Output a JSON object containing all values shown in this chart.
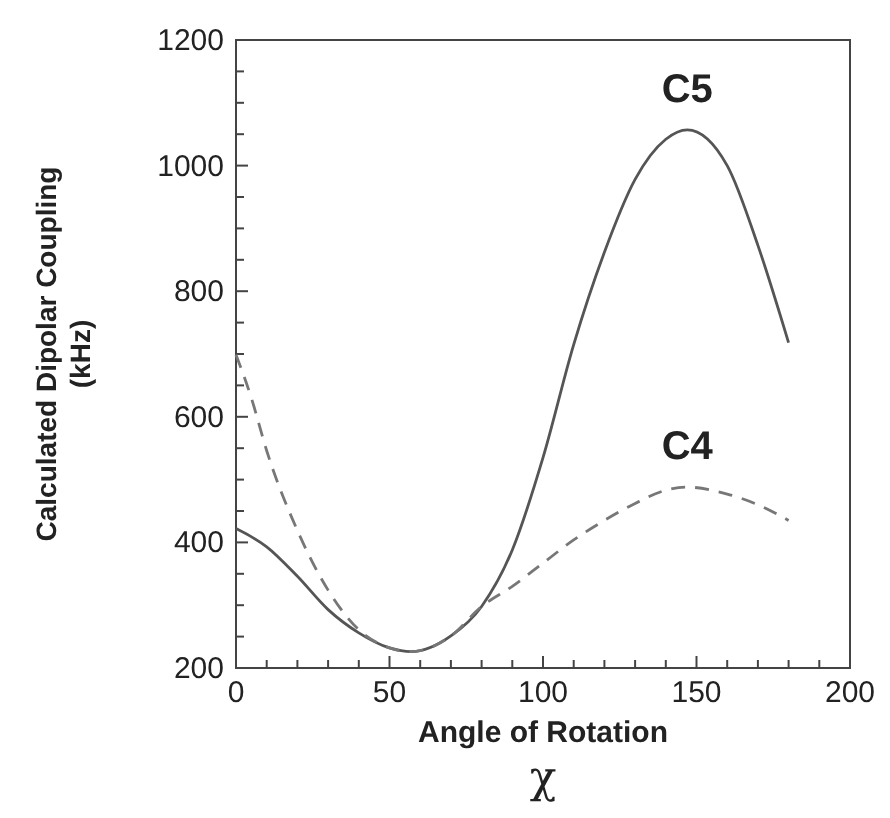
{
  "chart_data": {
    "type": "line",
    "xlabel": "Angle of Rotation",
    "ylabel": "Calculated Dipolar Coupling\n(kHz)",
    "xlim": [
      0,
      200
    ],
    "ylim": [
      200,
      1200
    ],
    "xticks": [
      0,
      {
        "value": 10,
        "label": null
      },
      {
        "value": 20,
        "label": null
      },
      {
        "value": 30,
        "label": null
      },
      {
        "value": 40,
        "label": null
      },
      50,
      {
        "value": 60,
        "label": null
      },
      {
        "value": 70,
        "label": null
      },
      {
        "value": 80,
        "label": null
      },
      {
        "value": 90,
        "label": null
      },
      100,
      {
        "value": 110,
        "label": null
      },
      {
        "value": 120,
        "label": null
      },
      {
        "value": 130,
        "label": null
      },
      {
        "value": 140,
        "label": null
      },
      150,
      {
        "value": 160,
        "label": null
      },
      {
        "value": 170,
        "label": null
      },
      {
        "value": 180,
        "label": null
      },
      {
        "value": 190,
        "label": null
      },
      200
    ],
    "yticks": [
      200,
      {
        "value": 250,
        "label": null
      },
      {
        "value": 300,
        "label": null
      },
      {
        "value": 350,
        "label": null
      },
      400,
      {
        "value": 450,
        "label": null
      },
      {
        "value": 500,
        "label": null
      },
      {
        "value": 550,
        "label": null
      },
      600,
      {
        "value": 650,
        "label": null
      },
      {
        "value": 700,
        "label": null
      },
      {
        "value": 750,
        "label": null
      },
      800,
      {
        "value": 850,
        "label": null
      },
      {
        "value": 900,
        "label": null
      },
      {
        "value": 950,
        "label": null
      },
      1000,
      {
        "value": 1050,
        "label": null
      },
      {
        "value": 1100,
        "label": null
      },
      {
        "value": 1150,
        "label": null
      },
      1200
    ],
    "grid": false,
    "marker": "none",
    "x": [
      0,
      10,
      20,
      30,
      40,
      50,
      57,
      70,
      80,
      90,
      100,
      110,
      120,
      130,
      140,
      147,
      160,
      170,
      180
    ],
    "series": [
      {
        "name": "C5",
        "color": "#555555",
        "line_style": "solid",
        "values": [
          422,
          393,
          346,
          293,
          256,
          232,
          226,
          251,
          298,
          388,
          535,
          715,
          862,
          978,
          1042,
          1057,
          1000,
          873,
          718
        ]
      },
      {
        "name": "C4",
        "color": "#777777",
        "line_style": "dashed",
        "x": [
          0,
          5,
          10,
          20,
          30,
          40,
          50,
          57,
          70,
          80,
          90,
          100,
          110,
          120,
          130,
          140,
          147,
          160,
          170,
          180
        ],
        "values": [
          699,
          630,
          546,
          419,
          324,
          261,
          232,
          226,
          251,
          298,
          330,
          367,
          404,
          435,
          462,
          483,
          488,
          477,
          460,
          435
        ]
      }
    ],
    "annotations": [
      "χ"
    ]
  }
}
